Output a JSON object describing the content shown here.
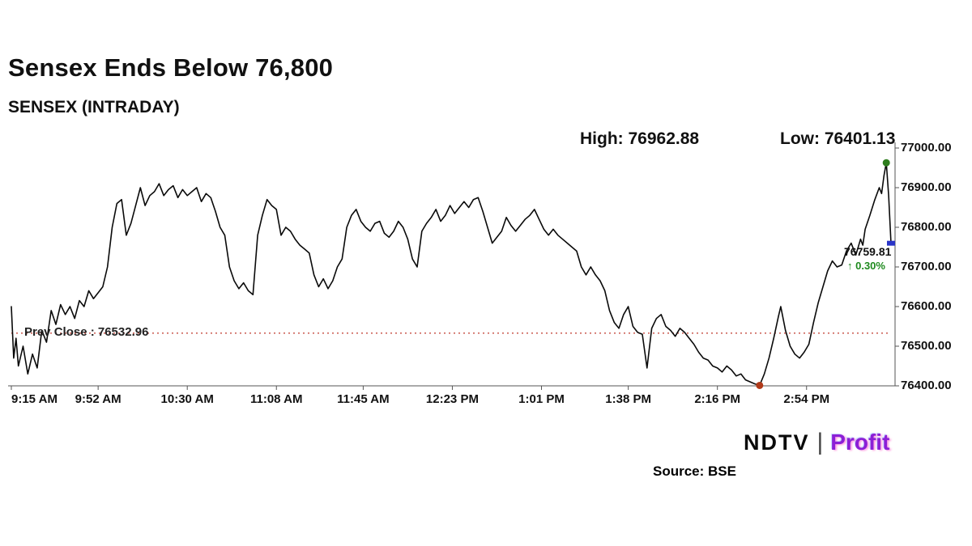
{
  "header": {
    "title": "Sensex Ends Below 76,800",
    "subtitle": "SENSEX (INTRADAY)",
    "high_label": "High: 76962.88",
    "low_label": "Low: 76401.13"
  },
  "chart_data": {
    "type": "line",
    "title": "SENSEX (INTRADAY)",
    "series_name": "SENSEX",
    "x_unit": "minutes-of-day",
    "x_range": [
      555,
      930
    ],
    "ylim": [
      76400,
      77000
    ],
    "grid": false,
    "legend_position": "none",
    "y_ticks": [
      {
        "v": 77000,
        "label": "77000.00"
      },
      {
        "v": 76900,
        "label": "76900.00"
      },
      {
        "v": 76800,
        "label": "76800.00"
      },
      {
        "v": 76700,
        "label": "76700.00"
      },
      {
        "v": 76600,
        "label": "76600.00"
      },
      {
        "v": 76500,
        "label": "76500.00"
      },
      {
        "v": 76400,
        "label": "76400.00"
      }
    ],
    "x_ticks": [
      {
        "t": 555,
        "label": "9:15 AM"
      },
      {
        "t": 592,
        "label": "9:52 AM"
      },
      {
        "t": 630,
        "label": "10:30 AM"
      },
      {
        "t": 668,
        "label": "11:08 AM"
      },
      {
        "t": 705,
        "label": "11:45 AM"
      },
      {
        "t": 743,
        "label": "12:23 PM"
      },
      {
        "t": 781,
        "label": "1:01 PM"
      },
      {
        "t": 818,
        "label": "1:38 PM"
      },
      {
        "t": 856,
        "label": "2:16 PM"
      },
      {
        "t": 894,
        "label": "2:54 PM"
      }
    ],
    "prev_close": {
      "value": 76532.96,
      "label": "Prev Close : 76532.96"
    },
    "high": {
      "value": 76962.88,
      "label": "High: 76962.88"
    },
    "low": {
      "value": 76401.13,
      "label": "Low: 76401.13"
    },
    "last": {
      "value": 76759.81,
      "label": "76759.81",
      "change_pct_label": "↑ 0.30%"
    },
    "points": [
      [
        555,
        76600
      ],
      [
        556,
        76470
      ],
      [
        557,
        76520
      ],
      [
        558,
        76450
      ],
      [
        560,
        76500
      ],
      [
        562,
        76430
      ],
      [
        564,
        76480
      ],
      [
        566,
        76445
      ],
      [
        568,
        76540
      ],
      [
        570,
        76510
      ],
      [
        572,
        76590
      ],
      [
        574,
        76555
      ],
      [
        576,
        76605
      ],
      [
        578,
        76580
      ],
      [
        580,
        76600
      ],
      [
        582,
        76570
      ],
      [
        584,
        76615
      ],
      [
        586,
        76600
      ],
      [
        588,
        76640
      ],
      [
        590,
        76620
      ],
      [
        592,
        76635
      ],
      [
        594,
        76650
      ],
      [
        596,
        76700
      ],
      [
        598,
        76800
      ],
      [
        600,
        76860
      ],
      [
        602,
        76870
      ],
      [
        604,
        76780
      ],
      [
        606,
        76810
      ],
      [
        608,
        76855
      ],
      [
        610,
        76900
      ],
      [
        612,
        76855
      ],
      [
        614,
        76880
      ],
      [
        616,
        76890
      ],
      [
        618,
        76910
      ],
      [
        620,
        76880
      ],
      [
        622,
        76895
      ],
      [
        624,
        76905
      ],
      [
        626,
        76875
      ],
      [
        628,
        76895
      ],
      [
        630,
        76880
      ],
      [
        632,
        76890
      ],
      [
        634,
        76900
      ],
      [
        636,
        76865
      ],
      [
        638,
        76885
      ],
      [
        640,
        76875
      ],
      [
        642,
        76840
      ],
      [
        644,
        76800
      ],
      [
        646,
        76780
      ],
      [
        648,
        76700
      ],
      [
        650,
        76665
      ],
      [
        652,
        76645
      ],
      [
        654,
        76660
      ],
      [
        656,
        76640
      ],
      [
        658,
        76630
      ],
      [
        660,
        76780
      ],
      [
        662,
        76830
      ],
      [
        664,
        76870
      ],
      [
        666,
        76855
      ],
      [
        668,
        76845
      ],
      [
        670,
        76780
      ],
      [
        672,
        76800
      ],
      [
        674,
        76790
      ],
      [
        676,
        76770
      ],
      [
        678,
        76755
      ],
      [
        680,
        76745
      ],
      [
        682,
        76735
      ],
      [
        684,
        76680
      ],
      [
        686,
        76650
      ],
      [
        688,
        76670
      ],
      [
        690,
        76645
      ],
      [
        692,
        76665
      ],
      [
        694,
        76700
      ],
      [
        696,
        76720
      ],
      [
        698,
        76800
      ],
      [
        700,
        76830
      ],
      [
        702,
        76845
      ],
      [
        704,
        76815
      ],
      [
        706,
        76800
      ],
      [
        708,
        76790
      ],
      [
        710,
        76810
      ],
      [
        712,
        76815
      ],
      [
        714,
        76785
      ],
      [
        716,
        76775
      ],
      [
        718,
        76790
      ],
      [
        720,
        76815
      ],
      [
        722,
        76800
      ],
      [
        724,
        76770
      ],
      [
        726,
        76720
      ],
      [
        728,
        76700
      ],
      [
        730,
        76790
      ],
      [
        732,
        76810
      ],
      [
        734,
        76825
      ],
      [
        736,
        76845
      ],
      [
        738,
        76815
      ],
      [
        740,
        76830
      ],
      [
        742,
        76855
      ],
      [
        744,
        76835
      ],
      [
        746,
        76850
      ],
      [
        748,
        76865
      ],
      [
        750,
        76850
      ],
      [
        752,
        76870
      ],
      [
        754,
        76875
      ],
      [
        756,
        76840
      ],
      [
        758,
        76800
      ],
      [
        760,
        76760
      ],
      [
        762,
        76775
      ],
      [
        764,
        76790
      ],
      [
        766,
        76825
      ],
      [
        768,
        76805
      ],
      [
        770,
        76790
      ],
      [
        772,
        76805
      ],
      [
        774,
        76820
      ],
      [
        776,
        76830
      ],
      [
        778,
        76845
      ],
      [
        780,
        76820
      ],
      [
        782,
        76795
      ],
      [
        784,
        76780
      ],
      [
        786,
        76795
      ],
      [
        788,
        76780
      ],
      [
        790,
        76770
      ],
      [
        792,
        76760
      ],
      [
        794,
        76750
      ],
      [
        796,
        76740
      ],
      [
        798,
        76700
      ],
      [
        800,
        76680
      ],
      [
        802,
        76700
      ],
      [
        804,
        76680
      ],
      [
        806,
        76665
      ],
      [
        808,
        76640
      ],
      [
        810,
        76590
      ],
      [
        812,
        76560
      ],
      [
        814,
        76545
      ],
      [
        816,
        76580
      ],
      [
        818,
        76600
      ],
      [
        820,
        76550
      ],
      [
        822,
        76535
      ],
      [
        824,
        76530
      ],
      [
        826,
        76445
      ],
      [
        828,
        76545
      ],
      [
        830,
        76570
      ],
      [
        832,
        76580
      ],
      [
        834,
        76550
      ],
      [
        836,
        76540
      ],
      [
        838,
        76525
      ],
      [
        840,
        76545
      ],
      [
        842,
        76535
      ],
      [
        844,
        76520
      ],
      [
        846,
        76505
      ],
      [
        848,
        76485
      ],
      [
        850,
        76470
      ],
      [
        852,
        76465
      ],
      [
        854,
        76450
      ],
      [
        856,
        76445
      ],
      [
        858,
        76435
      ],
      [
        860,
        76450
      ],
      [
        862,
        76440
      ],
      [
        864,
        76425
      ],
      [
        866,
        76430
      ],
      [
        868,
        76415
      ],
      [
        870,
        76410
      ],
      [
        872,
        76405
      ],
      [
        874,
        76401.13
      ],
      [
        876,
        76430
      ],
      [
        878,
        76470
      ],
      [
        880,
        76520
      ],
      [
        882,
        76575
      ],
      [
        883,
        76600
      ],
      [
        885,
        76540
      ],
      [
        887,
        76500
      ],
      [
        889,
        76480
      ],
      [
        891,
        76470
      ],
      [
        893,
        76485
      ],
      [
        895,
        76505
      ],
      [
        897,
        76560
      ],
      [
        899,
        76610
      ],
      [
        901,
        76650
      ],
      [
        903,
        76690
      ],
      [
        905,
        76715
      ],
      [
        907,
        76700
      ],
      [
        909,
        76705
      ],
      [
        911,
        76740
      ],
      [
        913,
        76760
      ],
      [
        915,
        76730
      ],
      [
        917,
        76770
      ],
      [
        918,
        76755
      ],
      [
        919,
        76795
      ],
      [
        921,
        76830
      ],
      [
        923,
        76868
      ],
      [
        925,
        76900
      ],
      [
        926,
        76885
      ],
      [
        927,
        76930
      ],
      [
        928,
        76962.88
      ],
      [
        929,
        76880
      ],
      [
        930,
        76759.81
      ]
    ]
  },
  "footer": {
    "source": "Source: BSE",
    "logo": {
      "ndtv": "NDTV",
      "separator": "|",
      "profit": "Profit"
    }
  },
  "colors": {
    "line": "#0a0a0a",
    "axis": "#555555",
    "prev_close_line": "#c0392b",
    "high_marker": "#2e7d1e",
    "low_marker": "#b03a1a",
    "last_marker": "#2a35c8",
    "change_green": "#1e8a1e",
    "profit_purple": "#8b1fd6"
  }
}
